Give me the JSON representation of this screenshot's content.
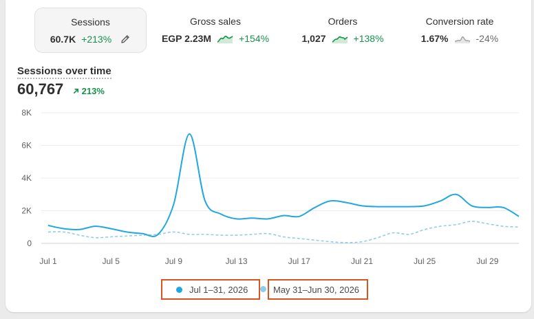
{
  "metrics": [
    {
      "label": "Sessions",
      "value": "60.7K",
      "delta": "+213%",
      "trend": "up",
      "selected": true,
      "icon": "pencil-icon"
    },
    {
      "label": "Gross sales",
      "value": "EGP 2.23M",
      "delta": "+154%",
      "trend": "up",
      "selected": false,
      "icon": "sparkline-icon"
    },
    {
      "label": "Orders",
      "value": "1,027",
      "delta": "+138%",
      "trend": "up",
      "selected": false,
      "icon": "sparkline-icon"
    },
    {
      "label": "Conversion rate",
      "value": "1.67%",
      "delta": "-24%",
      "trend": "down",
      "selected": false,
      "icon": "sparkline-icon"
    }
  ],
  "chart_header": {
    "title": "Sessions over time",
    "value": "60,767",
    "delta": "213%"
  },
  "colors": {
    "current": "#1fa7e1",
    "previous": "#8fcdec",
    "up": "#16924a",
    "highlight_border": "#d9541e"
  },
  "chart_data": {
    "type": "line",
    "title": "Sessions over time",
    "x": [
      "Jul 1",
      "Jul 2",
      "Jul 3",
      "Jul 4",
      "Jul 5",
      "Jul 6",
      "Jul 7",
      "Jul 8",
      "Jul 9",
      "Jul 10",
      "Jul 11",
      "Jul 12",
      "Jul 13",
      "Jul 14",
      "Jul 15",
      "Jul 16",
      "Jul 17",
      "Jul 18",
      "Jul 19",
      "Jul 20",
      "Jul 21",
      "Jul 22",
      "Jul 23",
      "Jul 24",
      "Jul 25",
      "Jul 26",
      "Jul 27",
      "Jul 28",
      "Jul 29",
      "Jul 30",
      "Jul 31"
    ],
    "x_tick_labels": [
      "Jul 1",
      "Jul 5",
      "Jul 9",
      "Jul 13",
      "Jul 17",
      "Jul 21",
      "Jul 25",
      "Jul 29"
    ],
    "y_ticks": [
      0,
      2000,
      4000,
      6000,
      8000
    ],
    "y_tick_labels": [
      "0",
      "2K",
      "4K",
      "6K",
      "8K"
    ],
    "ylim": [
      0,
      8000
    ],
    "grid": true,
    "legend_position": "bottom",
    "series": [
      {
        "name": "Jul 1–31, 2026",
        "style": "solid",
        "values": [
          1100,
          900,
          850,
          1050,
          900,
          700,
          600,
          550,
          2400,
          6700,
          2600,
          1800,
          1500,
          1550,
          1500,
          1700,
          1650,
          2200,
          2600,
          2500,
          2300,
          2250,
          2250,
          2250,
          2300,
          2600,
          3000,
          2300,
          2200,
          2200,
          1650
        ]
      },
      {
        "name": "May 31–Jun 30, 2026",
        "style": "dashed",
        "values": [
          700,
          700,
          500,
          350,
          400,
          450,
          500,
          550,
          700,
          550,
          550,
          500,
          500,
          550,
          600,
          400,
          300,
          200,
          100,
          50,
          100,
          350,
          650,
          550,
          850,
          1050,
          1150,
          1350,
          1200,
          1050,
          1000
        ]
      }
    ]
  }
}
